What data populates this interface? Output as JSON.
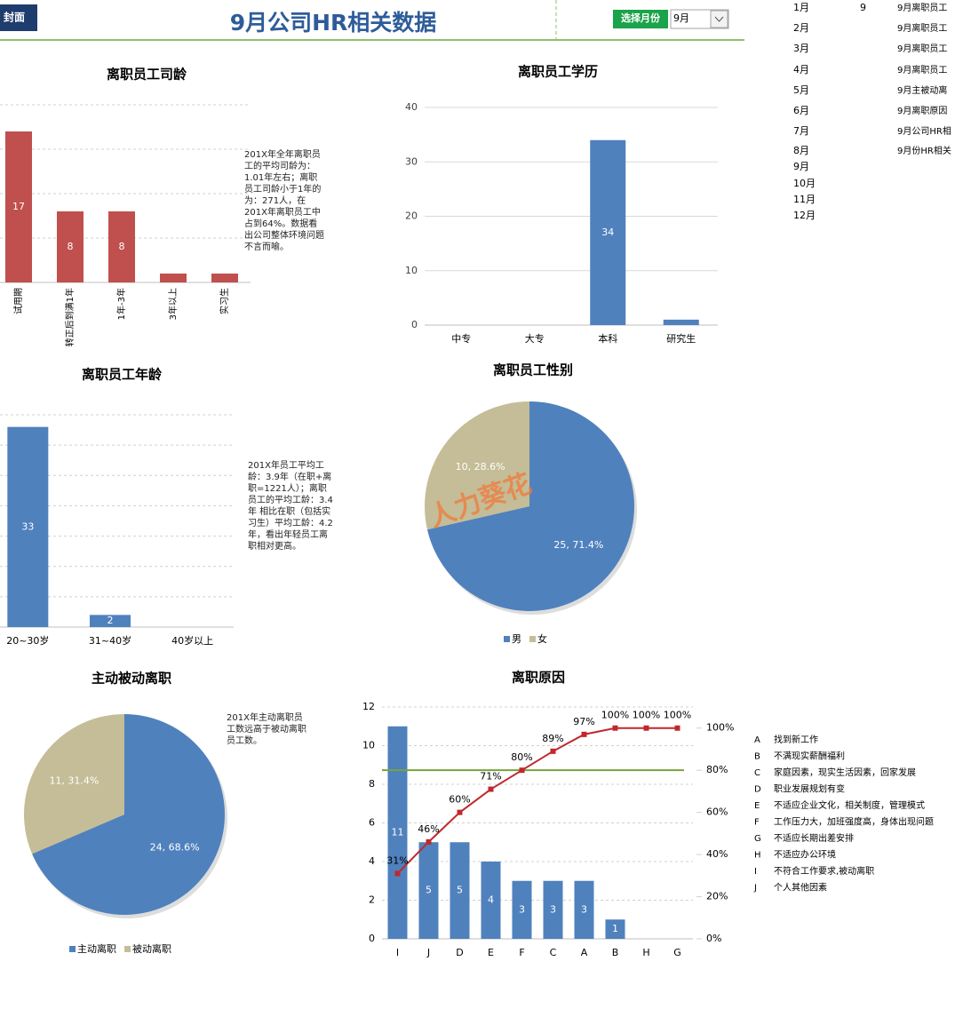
{
  "header": {
    "cover_button": "封面",
    "title": "9月公司HR相关数据",
    "select_month_button": "选择月份",
    "month_dropdown": "9月"
  },
  "side_table": {
    "months": [
      "1月",
      "2月",
      "3月",
      "4月",
      "5月",
      "6月",
      "7月",
      "8月",
      "9月",
      "10月",
      "11月",
      "12月"
    ],
    "selected_month": "9",
    "sheets": [
      "9月离职员工",
      "9月离职员工",
      "9月离职员工",
      "9月离职员工",
      "9月主被动离",
      "9月离职原因",
      "9月公司HR相",
      "9月份HR相关"
    ]
  },
  "chart_data": [
    {
      "type": "bar",
      "title": "离职员工司龄",
      "categories": [
        "试用期",
        "转正后到满1年",
        "1年-3年",
        "3年以上",
        "实习生"
      ],
      "values": [
        17,
        8,
        8,
        1,
        1
      ],
      "color": "#c0504d",
      "ylim": [
        0,
        20
      ],
      "yticks": [
        0,
        5,
        10,
        15,
        20
      ],
      "grid": true,
      "annotation": "201X年全年离职员工的平均司龄为：1.01年左右；离职员工司龄小于1年的为：271人，在201X年离职员工中占到64%。数据看出公司整体环境问题不言而喻。"
    },
    {
      "type": "bar",
      "title": "离职员工学历",
      "categories": [
        "中专",
        "大专",
        "本科",
        "研究生"
      ],
      "values": [
        0,
        0,
        34,
        1
      ],
      "color": "#4f81bd",
      "ylim": [
        0,
        40
      ],
      "yticks": [
        0,
        10,
        20,
        30,
        40
      ],
      "grid": true
    },
    {
      "type": "bar",
      "title": "离职员工年龄",
      "categories": [
        "20~30岁",
        "31~40岁",
        "40岁以上"
      ],
      "values": [
        33,
        2,
        0
      ],
      "color": "#4f81bd",
      "ylim": [
        0,
        35
      ],
      "yticks": [
        0,
        5,
        10,
        15,
        20,
        25,
        30,
        35
      ],
      "grid": true,
      "annotation": "201X年员工平均工龄：3.9年（在职+离职=1221人）；离职员工的平均工龄：3.4年 相比在职（包括实习生）平均工龄：4.2年，看出年轻员工离职相对更高。"
    },
    {
      "type": "pie",
      "title": "离职员工性别",
      "categories": [
        "男",
        "女"
      ],
      "values": [
        25,
        10
      ],
      "value_labels": [
        "25, 71.4%",
        "10, 28.6%"
      ],
      "colors": [
        "#4f81bd",
        "#c4bd97"
      ],
      "watermark": "人力葵花"
    },
    {
      "type": "pie",
      "title": "主动被动离职",
      "categories": [
        "主动离职",
        "被动离职"
      ],
      "values": [
        24,
        11
      ],
      "value_labels": [
        "24, 68.6%",
        "11, 31.4%"
      ],
      "colors": [
        "#4f81bd",
        "#c4bd97"
      ],
      "annotation": "201X年主动离职员工数远高于被动离职员工数。"
    },
    {
      "type": "pareto",
      "title": "离职原因",
      "categories": [
        "I",
        "J",
        "D",
        "E",
        "F",
        "C",
        "A",
        "B",
        "H",
        "G"
      ],
      "series": [
        {
          "color": "#4f81bd",
          "values": [
            11,
            5,
            5,
            4,
            3,
            3,
            3,
            1,
            0,
            0
          ]
        },
        {
          "color": "#c0282d",
          "axis": "y2",
          "values": [
            31,
            46,
            60,
            71,
            80,
            89,
            97,
            100,
            100,
            100
          ],
          "value_labels": [
            "31%",
            "46%",
            "60%",
            "71%",
            "80%",
            "89%",
            "97%",
            "100%",
            "100%",
            "100%"
          ]
        }
      ],
      "reference_line": {
        "value": 80,
        "color": "#77a33b"
      },
      "ylim": [
        0,
        12
      ],
      "yticks": [
        0,
        2,
        4,
        6,
        8,
        10,
        12
      ],
      "y2lim": [
        0,
        110
      ],
      "y2ticks": [
        {
          "value": 0,
          "label": "0%"
        },
        {
          "value": 20,
          "label": "20%"
        },
        {
          "value": 40,
          "label": "40%"
        },
        {
          "value": 60,
          "label": "60%"
        },
        {
          "value": 80,
          "label": "80%"
        },
        {
          "value": 100,
          "label": "100%"
        }
      ],
      "grid": true,
      "notes": [
        {
          "key": "A",
          "text": "找到新工作"
        },
        {
          "key": "B",
          "text": "不满现实薪酬福利"
        },
        {
          "key": "C",
          "text": "家庭因素，现实生活因素，回家发展"
        },
        {
          "key": "D",
          "text": "职业发展规划有变"
        },
        {
          "key": "E",
          "text": "不适应企业文化，相关制度，管理模式"
        },
        {
          "key": "F",
          "text": "工作压力大，加班强度高，身体出现问题"
        },
        {
          "key": "G",
          "text": "不适应长期出差安排"
        },
        {
          "key": "H",
          "text": "不适应办公环境"
        },
        {
          "key": "I",
          "text": "不符合工作要求,被动离职"
        },
        {
          "key": "J",
          "text": "个人其他因素"
        }
      ]
    }
  ]
}
